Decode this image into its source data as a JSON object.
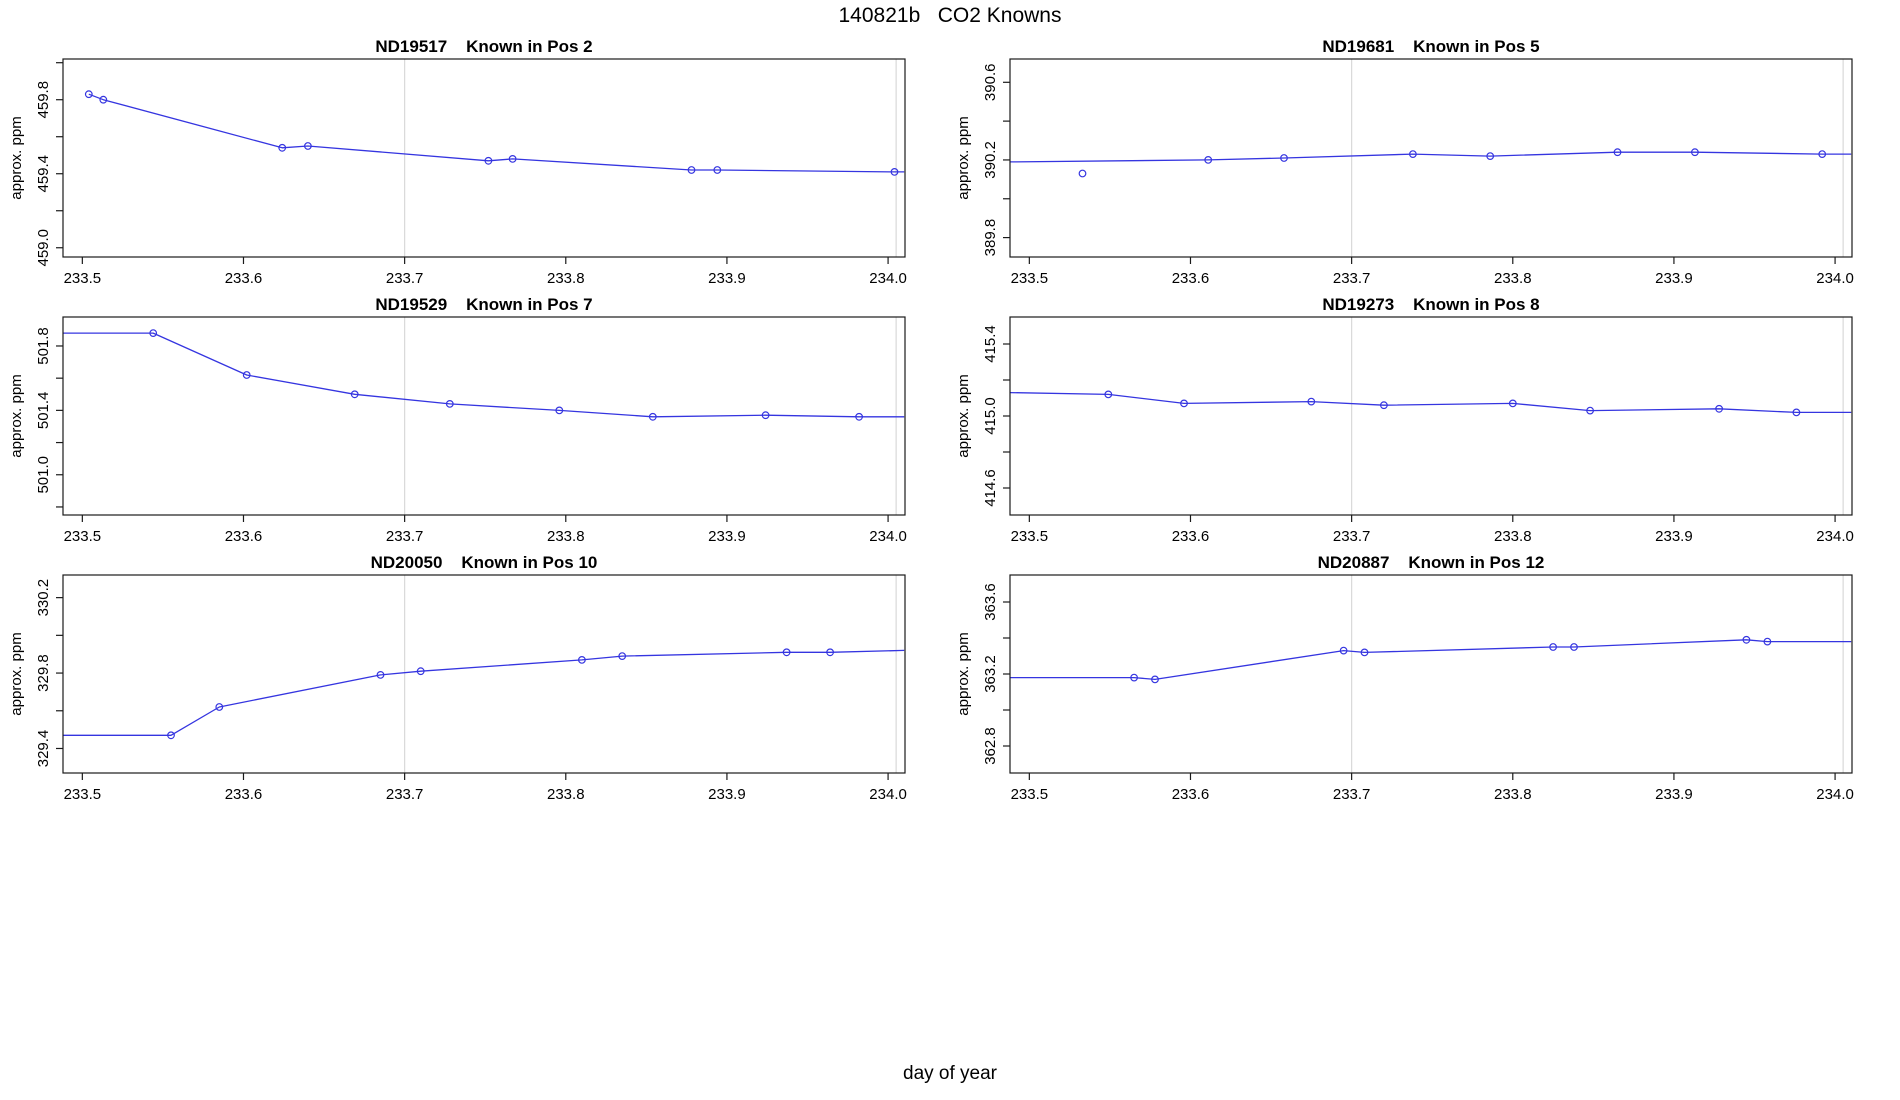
{
  "page_title": "140821b   CO2 Knowns",
  "x_axis_label": "day of year",
  "colors": {
    "line": "#3535e0",
    "marker": "#3535e0",
    "gridline": "#d9d9d9",
    "axis": "#1a1a1a",
    "background": "#ffffff"
  },
  "chart_data": [
    {
      "type": "line",
      "title": "ND19517    Known in Pos 2",
      "sample_id": "ND19517",
      "position_label": "Known in Pos 2",
      "ylabel": "approx. ppm",
      "xlim": [
        233.488,
        234.0105
      ],
      "ylim": [
        458.95,
        460.02
      ],
      "xticks": [
        233.5,
        233.6,
        233.7,
        233.8,
        233.9,
        234.0
      ],
      "ytick_labels": [
        459.0,
        459.4,
        459.8
      ],
      "ytick_step": 0.2,
      "grid": "vertical-reference-lines",
      "gridlines_x": [
        233.7,
        234.005
      ],
      "legend": "none",
      "points": {
        "x": [
          233.504,
          233.513,
          233.624,
          233.64,
          233.752,
          233.767,
          233.878,
          233.894,
          234.004
        ],
        "y": [
          459.83,
          459.8,
          459.54,
          459.55,
          459.47,
          459.48,
          459.42,
          459.42,
          459.41
        ]
      },
      "line": {
        "x": [
          233.504,
          233.513,
          233.624,
          233.64,
          233.752,
          233.767,
          233.878,
          233.894,
          234.004,
          234.01
        ],
        "y": [
          459.83,
          459.8,
          459.54,
          459.55,
          459.47,
          459.48,
          459.42,
          459.42,
          459.41,
          459.41
        ]
      }
    },
    {
      "type": "line",
      "title": "ND19681    Known in Pos 5",
      "sample_id": "ND19681",
      "position_label": "Known in Pos 5",
      "ylabel": "approx. ppm",
      "xlim": [
        233.488,
        234.0105
      ],
      "ylim": [
        389.7,
        390.72
      ],
      "xticks": [
        233.5,
        233.6,
        233.7,
        233.8,
        233.9,
        234.0
      ],
      "ytick_labels": [
        389.8,
        390.2,
        390.6
      ],
      "ytick_step": 0.2,
      "grid": "vertical-reference-lines",
      "gridlines_x": [
        233.7,
        234.005
      ],
      "legend": "none",
      "points": {
        "x": [
          233.533,
          233.611,
          233.658,
          233.738,
          233.786,
          233.865,
          233.913,
          233.992
        ],
        "y": [
          390.13,
          390.2,
          390.21,
          390.23,
          390.22,
          390.24,
          390.24,
          390.23
        ]
      },
      "line": {
        "x": [
          233.488,
          233.611,
          233.658,
          233.738,
          233.786,
          233.865,
          233.913,
          233.992,
          234.01
        ],
        "y": [
          390.19,
          390.2,
          390.21,
          390.23,
          390.22,
          390.24,
          390.24,
          390.23,
          390.23
        ]
      }
    },
    {
      "type": "line",
      "title": "ND19529    Known in Pos 7",
      "sample_id": "ND19529",
      "position_label": "Known in Pos 7",
      "ylabel": "approx. ppm",
      "xlim": [
        233.488,
        234.0105
      ],
      "ylim": [
        500.75,
        501.98
      ],
      "xticks": [
        233.5,
        233.6,
        233.7,
        233.8,
        233.9,
        234.0
      ],
      "ytick_labels": [
        501.0,
        501.4,
        501.8
      ],
      "ytick_step": 0.2,
      "grid": "vertical-reference-lines",
      "gridlines_x": [
        233.7,
        234.005
      ],
      "legend": "none",
      "points": {
        "x": [
          233.544,
          233.602,
          233.669,
          233.728,
          233.796,
          233.854,
          233.924,
          233.982
        ],
        "y": [
          501.88,
          501.62,
          501.5,
          501.44,
          501.4,
          501.36,
          501.37,
          501.36
        ]
      },
      "line": {
        "x": [
          233.488,
          233.544,
          233.602,
          233.669,
          233.728,
          233.796,
          233.854,
          233.924,
          233.982,
          234.01
        ],
        "y": [
          501.88,
          501.88,
          501.62,
          501.5,
          501.44,
          501.4,
          501.36,
          501.37,
          501.36,
          501.36
        ]
      }
    },
    {
      "type": "line",
      "title": "ND19273    Known in Pos 8",
      "sample_id": "ND19273",
      "position_label": "Known in Pos 8",
      "ylabel": "approx. ppm",
      "xlim": [
        233.488,
        234.0105
      ],
      "ylim": [
        414.45,
        415.55
      ],
      "xticks": [
        233.5,
        233.6,
        233.7,
        233.8,
        233.9,
        234.0
      ],
      "ytick_labels": [
        414.6,
        415.0,
        415.4
      ],
      "ytick_step": 0.2,
      "grid": "vertical-reference-lines",
      "gridlines_x": [
        233.7,
        234.005
      ],
      "legend": "none",
      "points": {
        "x": [
          233.549,
          233.596,
          233.675,
          233.72,
          233.8,
          233.848,
          233.928,
          233.976
        ],
        "y": [
          415.12,
          415.07,
          415.08,
          415.06,
          415.07,
          415.03,
          415.04,
          415.02
        ]
      },
      "line": {
        "x": [
          233.488,
          233.549,
          233.596,
          233.675,
          233.72,
          233.8,
          233.848,
          233.928,
          233.976,
          234.01
        ],
        "y": [
          415.13,
          415.12,
          415.07,
          415.08,
          415.06,
          415.07,
          415.03,
          415.04,
          415.02,
          415.02
        ]
      }
    },
    {
      "type": "line",
      "title": "ND20050    Known in Pos 10",
      "sample_id": "ND20050",
      "position_label": "Known in Pos 10",
      "ylabel": "approx. ppm",
      "xlim": [
        233.488,
        234.0105
      ],
      "ylim": [
        329.27,
        330.32
      ],
      "xticks": [
        233.5,
        233.6,
        233.7,
        233.8,
        233.9,
        234.0
      ],
      "ytick_labels": [
        329.4,
        329.8,
        330.2
      ],
      "ytick_step": 0.2,
      "grid": "vertical-reference-lines",
      "gridlines_x": [
        233.7,
        234.005
      ],
      "legend": "none",
      "points": {
        "x": [
          233.555,
          233.585,
          233.685,
          233.71,
          233.81,
          233.835,
          233.937,
          233.964
        ],
        "y": [
          329.47,
          329.62,
          329.79,
          329.81,
          329.87,
          329.89,
          329.91,
          329.91
        ]
      },
      "line": {
        "x": [
          233.488,
          233.555,
          233.585,
          233.685,
          233.71,
          233.81,
          233.835,
          233.937,
          233.964,
          234.01
        ],
        "y": [
          329.47,
          329.47,
          329.62,
          329.79,
          329.81,
          329.87,
          329.89,
          329.91,
          329.91,
          329.92
        ]
      }
    },
    {
      "type": "line",
      "title": "ND20887    Known in Pos 12",
      "sample_id": "ND20887",
      "position_label": "Known in Pos 12",
      "ylabel": "approx. ppm",
      "xlim": [
        233.488,
        234.0105
      ],
      "ylim": [
        362.65,
        363.75
      ],
      "xticks": [
        233.5,
        233.6,
        233.7,
        233.8,
        233.9,
        234.0
      ],
      "ytick_labels": [
        362.8,
        363.2,
        363.6
      ],
      "ytick_step": 0.2,
      "grid": "vertical-reference-lines",
      "gridlines_x": [
        233.7,
        234.005
      ],
      "legend": "none",
      "points": {
        "x": [
          233.565,
          233.578,
          233.695,
          233.708,
          233.825,
          233.838,
          233.945,
          233.958
        ],
        "y": [
          363.18,
          363.17,
          363.33,
          363.32,
          363.35,
          363.35,
          363.39,
          363.38
        ]
      },
      "line": {
        "x": [
          233.488,
          233.565,
          233.578,
          233.695,
          233.708,
          233.825,
          233.838,
          233.945,
          233.958,
          234.01
        ],
        "y": [
          363.18,
          363.18,
          363.17,
          363.33,
          363.32,
          363.35,
          363.35,
          363.39,
          363.38,
          363.38
        ]
      }
    }
  ]
}
